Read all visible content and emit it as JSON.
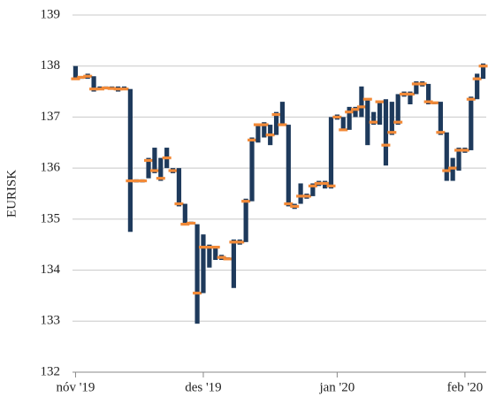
{
  "chart_data": {
    "type": "hilo",
    "ylabel": "EURISK",
    "categories": [
      "nóv '19",
      null,
      null,
      null,
      null,
      null,
      null,
      null,
      null,
      null,
      null,
      null,
      null,
      null,
      null,
      null,
      null,
      null,
      null,
      null,
      null,
      "des '19",
      null,
      null,
      null,
      null,
      null,
      null,
      null,
      null,
      null,
      null,
      null,
      null,
      null,
      null,
      null,
      null,
      null,
      null,
      null,
      null,
      null,
      "jan '20",
      null,
      null,
      null,
      null,
      null,
      null,
      null,
      null,
      null,
      null,
      null,
      null,
      null,
      null,
      null,
      null,
      null,
      null,
      null,
      null,
      "feb '20",
      null,
      null,
      null
    ],
    "high": [
      138.0,
      137.8,
      137.85,
      137.8,
      137.6,
      137.6,
      137.6,
      137.6,
      137.6,
      137.55,
      135.78,
      135.78,
      136.2,
      136.4,
      136.2,
      136.4,
      136.0,
      136.0,
      135.3,
      134.95,
      134.9,
      134.7,
      134.5,
      134.45,
      134.3,
      134.25,
      134.6,
      134.6,
      135.4,
      136.6,
      136.85,
      136.9,
      136.85,
      137.1,
      137.3,
      136.85,
      135.3,
      135.7,
      135.5,
      135.7,
      135.75,
      135.75,
      137.0,
      137.05,
      137.0,
      137.2,
      137.2,
      137.6,
      137.35,
      137.1,
      137.3,
      137.35,
      137.3,
      137.45,
      137.5,
      137.5,
      137.7,
      137.7,
      137.65,
      137.3,
      137.3,
      136.7,
      136.2,
      136.4,
      136.4,
      137.4,
      137.85,
      138.05
    ],
    "low": [
      137.75,
      137.75,
      137.75,
      137.5,
      137.55,
      137.55,
      137.55,
      137.5,
      137.55,
      134.75,
      135.72,
      135.72,
      135.8,
      135.9,
      135.75,
      136.0,
      135.9,
      135.25,
      134.9,
      134.9,
      132.95,
      133.55,
      134.05,
      134.2,
      134.2,
      134.2,
      133.65,
      134.5,
      134.55,
      135.35,
      136.5,
      136.6,
      136.45,
      136.65,
      136.85,
      135.25,
      135.2,
      135.3,
      135.4,
      135.45,
      135.65,
      135.6,
      135.6,
      136.95,
      136.75,
      136.75,
      137.0,
      137.0,
      136.45,
      136.85,
      136.85,
      136.05,
      136.65,
      136.85,
      137.4,
      137.25,
      137.45,
      137.6,
      137.25,
      137.25,
      136.65,
      135.75,
      135.75,
      135.95,
      136.3,
      136.35,
      137.35,
      137.75
    ],
    "close": [
      137.75,
      137.78,
      137.8,
      137.55,
      137.55,
      137.57,
      137.56,
      137.55,
      137.55,
      135.75,
      135.75,
      135.75,
      136.15,
      135.95,
      135.8,
      136.2,
      135.95,
      135.3,
      134.9,
      134.92,
      133.55,
      134.45,
      134.45,
      134.45,
      134.25,
      134.22,
      134.55,
      134.55,
      135.35,
      136.55,
      136.85,
      136.85,
      136.65,
      137.05,
      136.85,
      135.3,
      135.25,
      135.45,
      135.45,
      135.65,
      135.7,
      135.7,
      135.65,
      137.0,
      136.75,
      137.1,
      137.15,
      137.2,
      137.35,
      136.9,
      137.3,
      136.45,
      136.7,
      136.9,
      137.45,
      137.45,
      137.65,
      137.65,
      137.3,
      137.28,
      136.7,
      135.95,
      136.0,
      136.35,
      136.35,
      137.35,
      137.75,
      138.0
    ],
    "color": "#1e3a5c",
    "close_color": "#f28a38",
    "ylim": [
      132,
      139
    ],
    "yticks": [
      132,
      133,
      134,
      135,
      136,
      137,
      138,
      139
    ],
    "grid": true
  }
}
